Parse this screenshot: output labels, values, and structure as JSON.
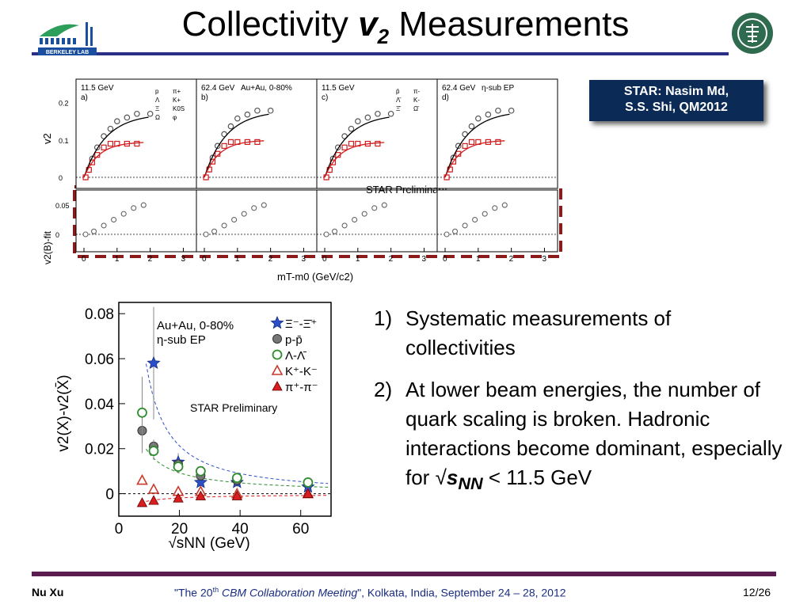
{
  "slide": {
    "title_pre": "Collectivity ",
    "title_var": "v",
    "title_sub": "2",
    "title_post": " Measurements",
    "tag_line1": "STAR: Nasim Md,",
    "tag_line2": "S.S. Shi, QM2012",
    "bullets": [
      {
        "num": "1)",
        "text": "Systematic measurements of collectivities"
      },
      {
        "num": "2)",
        "text": "At lower beam energies, the number of quark scaling is broken. Hadronic interactions become dominant, especially for √"
      }
    ],
    "bullet2_snn": "s",
    "bullet2_snn_sub": "NN",
    "bullet2_tail": " < 11.5 GeV",
    "footer_left": "Nu Xu",
    "footer_center_pre": "\"The 20",
    "footer_center_sup": "th",
    "footer_center_em": " CBM Collaboration Meeting",
    "footer_center_post": "\", Kolkata, India, September 24 – 28,  2012",
    "footer_right": "12/26",
    "logo_text": "BERKELEY LAB",
    "colors": {
      "rule": "#2b2f86",
      "footer_rule": "#5b1c4f",
      "tag_bg": "#0b2a55",
      "dashed_box": "#8b1a1a"
    }
  },
  "chart_data": [
    {
      "type": "scatter",
      "panels": [
        {
          "label": "11.5 GeV",
          "sub": "a)",
          "extra": ""
        },
        {
          "label": "62.4 GeV",
          "sub": "b)",
          "extra": "Au+Au,  0-80%"
        },
        {
          "label": "11.5 GeV",
          "sub": "c)",
          "extra": ""
        },
        {
          "label": "62.4 GeV",
          "sub": "d)",
          "extra": "η-sub EP"
        }
      ],
      "ylabel_top": "v2",
      "ylabel_bottom": "v2(B)-fit",
      "xlabel": "mT-m0 (GeV/c2)",
      "top_yticks": [
        "0.2",
        "0.1",
        "0"
      ],
      "bottom_yticks": [
        "0.05",
        "0"
      ],
      "xticks": [
        "0",
        "1",
        "2",
        "3"
      ],
      "legend_a": [
        "p",
        "π+",
        "Λ",
        "K+",
        "Ξ",
        "K0S",
        "Ω",
        "φ"
      ],
      "legend_c": [
        "p̄",
        "π-",
        "Λ̄",
        "K-",
        "Ξ̄",
        "Ω̄"
      ],
      "annotation": "STAR Preliminary",
      "series_top": {
        "gray": [
          [
            0.05,
            0.0
          ],
          [
            0.15,
            0.02
          ],
          [
            0.25,
            0.05
          ],
          [
            0.4,
            0.08
          ],
          [
            0.6,
            0.11
          ],
          [
            0.8,
            0.13
          ],
          [
            1.0,
            0.15
          ],
          [
            1.3,
            0.16
          ],
          [
            1.6,
            0.17
          ],
          [
            2.0,
            0.17
          ]
        ],
        "red": [
          [
            0.05,
            0.0
          ],
          [
            0.15,
            0.02
          ],
          [
            0.25,
            0.04
          ],
          [
            0.4,
            0.06
          ],
          [
            0.6,
            0.08
          ],
          [
            0.8,
            0.09
          ],
          [
            1.0,
            0.09
          ],
          [
            1.3,
            0.09
          ],
          [
            1.6,
            0.09
          ]
        ]
      },
      "series_bottom": {
        "gray": [
          [
            0.05,
            0.0
          ],
          [
            0.3,
            0.005
          ],
          [
            0.6,
            0.015
          ],
          [
            0.9,
            0.025
          ],
          [
            1.2,
            0.035
          ],
          [
            1.5,
            0.045
          ],
          [
            1.8,
            0.05
          ]
        ]
      }
    },
    {
      "type": "scatter",
      "title": "",
      "xlabel": "√sNN  (GeV)",
      "ylabel": "v2(X)-v2(X̄)",
      "xlim": [
        0,
        70
      ],
      "ylim": [
        -0.01,
        0.085
      ],
      "xticks": [
        0,
        20,
        40,
        60
      ],
      "yticks": [
        0,
        0.02,
        0.04,
        0.06,
        0.08
      ],
      "ytick_labels": [
        "0",
        "0.02",
        "0.04",
        "0.06",
        "0.08"
      ],
      "system_label": "Au+Au,  0-80%",
      "ep_label": "η-sub EP",
      "annotation": "STAR Preliminary",
      "series": [
        {
          "name": "Ξ⁻-Ξ̄⁺",
          "marker": "star",
          "color": "#2a4fc8",
          "x": [
            11.5,
            19.6,
            27,
            39,
            62.4
          ],
          "y": [
            0.058,
            0.014,
            0.005,
            0.005,
            0.003
          ],
          "err": [
            0.025,
            0.004,
            0.002,
            0.002,
            0.002
          ]
        },
        {
          "name": "p-p̄",
          "marker": "filled-circle",
          "color": "#777777",
          "x": [
            7.7,
            11.5,
            19.6,
            27,
            39,
            62.4
          ],
          "y": [
            0.028,
            0.021,
            0.013,
            0.008,
            0.006,
            0.005
          ],
          "err": [
            0.01,
            0.003,
            0.002,
            0.001,
            0.001,
            0.001
          ]
        },
        {
          "name": "Λ-Λ̄",
          "marker": "open-circle",
          "color": "#2e8b2e",
          "x": [
            7.7,
            11.5,
            19.6,
            27,
            39,
            62.4
          ],
          "y": [
            0.036,
            0.019,
            0.012,
            0.01,
            0.007,
            0.005
          ],
          "err": [
            0.016,
            0.004,
            0.003,
            0.002,
            0.001,
            0.001
          ]
        },
        {
          "name": "K⁺-K⁻",
          "marker": "open-triangle",
          "color": "#c83a2a",
          "x": [
            7.7,
            11.5,
            19.6,
            27,
            39,
            62.4
          ],
          "y": [
            0.006,
            0.002,
            0.001,
            0.001,
            0.0,
            0.0
          ],
          "err": [
            0.002,
            0.001,
            0.001,
            0.001,
            0.001,
            0.001
          ]
        },
        {
          "name": "π⁺-π⁻",
          "marker": "filled-triangle",
          "color": "#d81e1e",
          "x": [
            7.7,
            11.5,
            19.6,
            27,
            39,
            62.4
          ],
          "y": [
            -0.004,
            -0.003,
            -0.002,
            -0.001,
            -0.001,
            0.0
          ],
          "err": [
            0.001,
            0.001,
            0.001,
            0.001,
            0.001,
            0.001
          ]
        }
      ],
      "fits": [
        {
          "color": "#2a4fc8",
          "style": "dashed"
        },
        {
          "color": "#2e8b2e",
          "style": "dashed"
        },
        {
          "color": "#d81e1e",
          "style": "dashed"
        }
      ]
    }
  ]
}
